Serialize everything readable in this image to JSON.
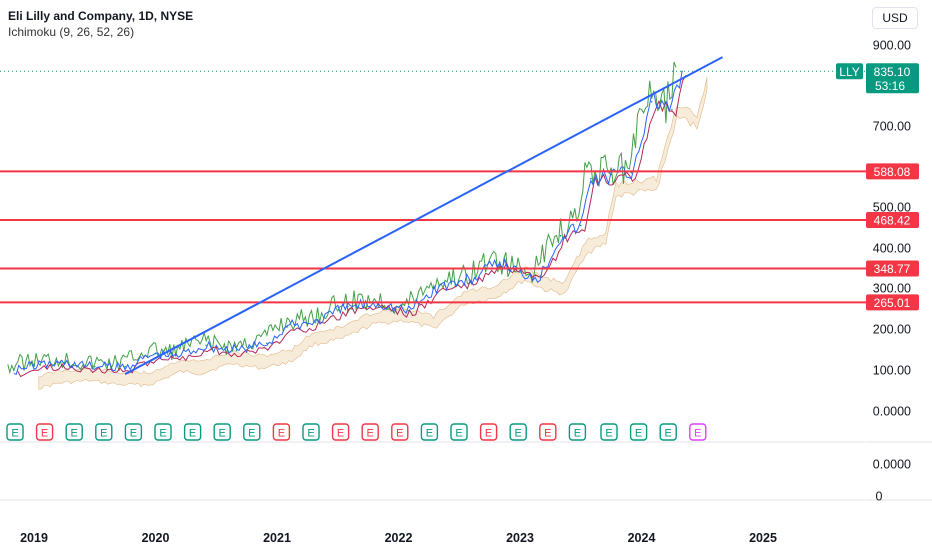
{
  "header": {
    "title": "Eli Lilly and Company, 1D, NYSE",
    "indicator": "Ichimoku (9, 26, 52, 26)"
  },
  "currency": "USD",
  "price_badge": {
    "ticker": "LLY",
    "price": "835.10",
    "countdown": "53:16",
    "color": "#089981"
  },
  "colors": {
    "trendline": "#2962ff",
    "levels": "#f23645",
    "price": "#089981",
    "cloud": "#f3e2c9",
    "tenkan": "#2962ff",
    "kijun": "#b2285a",
    "chikou": "#43a047",
    "earnings_icons": [
      "#089981",
      "#f23645",
      "#e040fb"
    ]
  },
  "earnings_events": [
    "E",
    "E",
    "E",
    "E",
    "E",
    "E",
    "E",
    "E",
    "E",
    "E",
    "E",
    "E",
    "E",
    "E",
    "E",
    "E",
    "E",
    "E",
    "E",
    "E",
    "E",
    "E",
    "E",
    "E"
  ],
  "earnings_colors": [
    "g",
    "r",
    "g",
    "g",
    "g",
    "g",
    "g",
    "g",
    "g",
    "r",
    "g",
    "r",
    "r",
    "r",
    "g",
    "g",
    "r",
    "g",
    "r",
    "g",
    "g",
    "g",
    "g",
    "p"
  ],
  "chart_data": {
    "type": "line",
    "title": "Eli Lilly and Company, 1D, NYSE",
    "y_axis_labels": [
      "900.00",
      "700.00",
      "500.00",
      "400.00",
      "300.00",
      "200.00",
      "100.00",
      "0.0000"
    ],
    "lower_pane_labels": [
      "0.0000",
      "0"
    ],
    "x_axis_labels": [
      "2019",
      "2020",
      "2021",
      "2022",
      "2023",
      "2024",
      "2025"
    ],
    "horizontal_levels": [
      {
        "value": 588.08,
        "label": "588.08"
      },
      {
        "value": 468.42,
        "label": "468.42"
      },
      {
        "value": 348.77,
        "label": "348.77"
      },
      {
        "value": 265.01,
        "label": "265.01"
      }
    ],
    "trendline": {
      "start": {
        "x": "2019-10",
        "y": 90
      },
      "end": {
        "x": "2024-09",
        "y": 870
      }
    },
    "series": [
      {
        "name": "LLY",
        "x": [
          "2018-11",
          "2019-01",
          "2019-04",
          "2019-07",
          "2019-10",
          "2020-01",
          "2020-03",
          "2020-06",
          "2020-09",
          "2020-12",
          "2021-02",
          "2021-05",
          "2021-08",
          "2021-11",
          "2022-02",
          "2022-05",
          "2022-08",
          "2022-11",
          "2023-01",
          "2023-03",
          "2023-05",
          "2023-07",
          "2023-08",
          "2023-10",
          "2023-12",
          "2024-02",
          "2024-03",
          "2024-04",
          "2024-05"
        ],
        "values": [
          100,
          112,
          118,
          108,
          108,
          140,
          135,
          160,
          148,
          165,
          205,
          220,
          255,
          265,
          245,
          305,
          320,
          365,
          340,
          330,
          430,
          455,
          570,
          580,
          585,
          760,
          760,
          740,
          835
        ]
      }
    ]
  }
}
